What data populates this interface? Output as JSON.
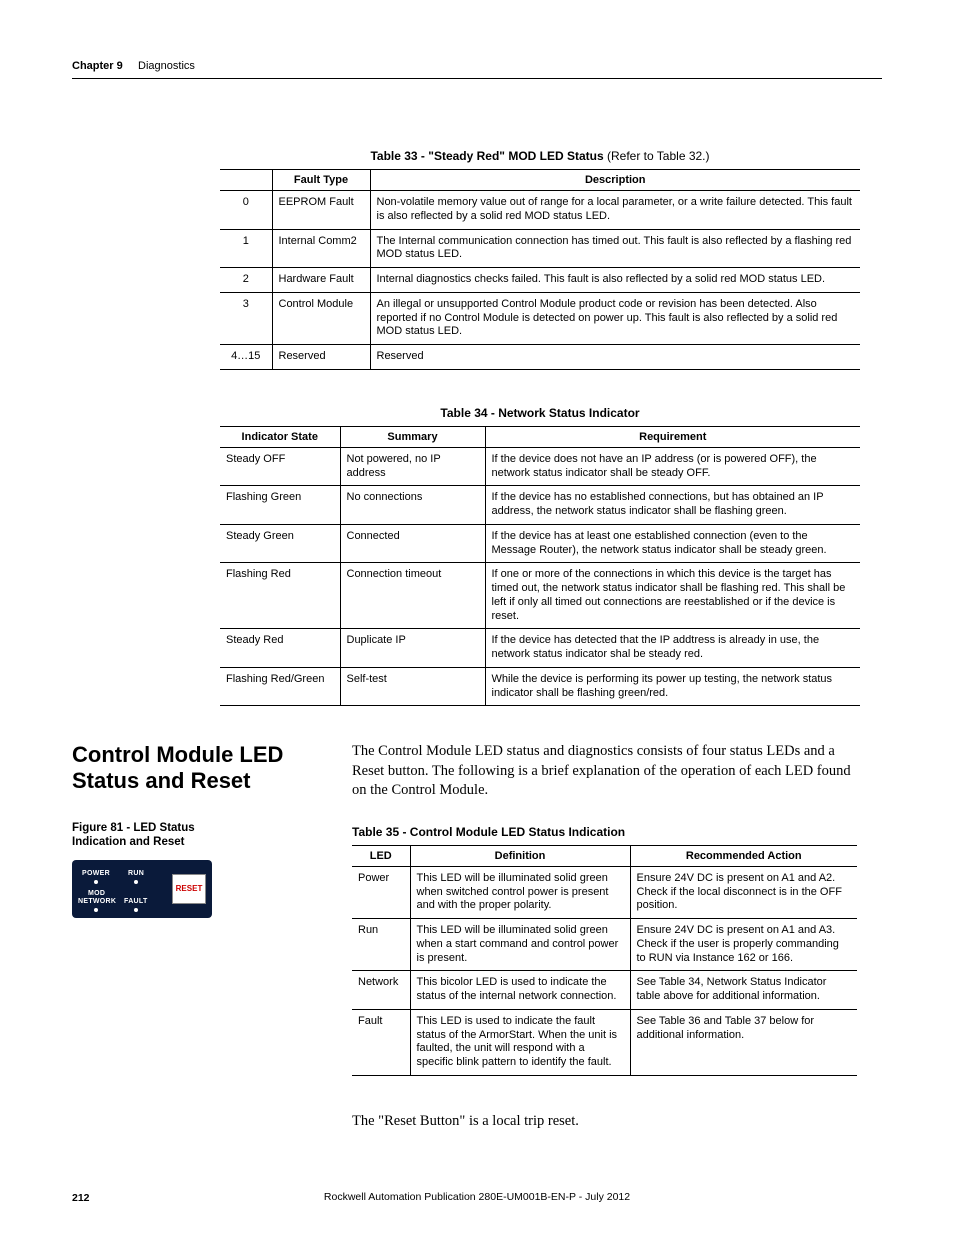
{
  "header": {
    "chapter_label": "Chapter 9",
    "chapter_title": "Diagnostics"
  },
  "table33": {
    "caption_bold": "Table 33 - \"Steady Red\" MOD LED Status",
    "caption_rest": " (Refer to Table 32.)",
    "headers": [
      "",
      "Fault Type",
      "Description"
    ],
    "rows": [
      [
        "0",
        "EEPROM Fault",
        "Non-volatile memory value out of range for a local parameter, or a write failure detected. This fault is also reflected by a solid red MOD status LED."
      ],
      [
        "1",
        "Internal Comm2",
        "The Internal communication connection has timed out. This fault is also reflected by a flashing red MOD status LED."
      ],
      [
        "2",
        "Hardware Fault",
        "Internal diagnostics checks failed. This fault is also reflected by a solid red MOD status LED."
      ],
      [
        "3",
        "Control Module",
        "An illegal or unsupported Control Module product code or revision has been detected. Also reported if no Control Module is detected on power up. This fault is also reflected by a solid red MOD status LED."
      ],
      [
        "4…15",
        "Reserved",
        "Reserved"
      ]
    ]
  },
  "table34": {
    "caption": "Table 34 - Network Status Indicator",
    "headers": [
      "Indicator State",
      "Summary",
      "Requirement"
    ],
    "rows": [
      [
        "Steady OFF",
        "Not powered, no IP address",
        "If the device does not have an IP address (or is powered OFF), the network status indicator shall be steady OFF."
      ],
      [
        "Flashing Green",
        "No connections",
        "If the device has no established connections, but has obtained an IP address, the network status indicator shall be flashing green."
      ],
      [
        "Steady Green",
        "Connected",
        "If the device has at least one established connection (even to the Message Router), the network status indicator shall be steady green."
      ],
      [
        "Flashing Red",
        "Connection timeout",
        "If one or more of the connections in which this device is the target has timed out, the network status indicator shall be flashing red. This shall be left if only all timed out connections are reestablished or if the device is reset."
      ],
      [
        "Steady Red",
        "Duplicate IP",
        "If the device has detected that the IP addtress is already in use, the network status indicator shal be steady red."
      ],
      [
        "Flashing Red/Green",
        "Self-test",
        "While the device is performing its power up testing, the network status indicator shall be flashing green/red."
      ]
    ]
  },
  "section": {
    "heading": "Control Module LED Status and Reset",
    "para1": "The Control Module LED status and diagnostics consists of four status LEDs and a Reset button. The following is a brief explanation of the operation of each LED found on the Control Module.",
    "figure_caption": "Figure 81 - LED Status Indication and Reset",
    "panel": {
      "power": "POWER",
      "run": "RUN",
      "network": "NETWORK",
      "fault": "FAULT",
      "reset": "RESET"
    }
  },
  "table35": {
    "caption": "Table 35 - Control Module LED Status Indication",
    "headers": [
      "LED",
      "Definition",
      "Recommended Action"
    ],
    "rows": [
      [
        "Power",
        "This LED will be illuminated solid green when switched control power is present and with the proper polarity.",
        "Ensure 24V DC is present on A1 and A2. Check if the local disconnect is in the OFF position."
      ],
      [
        "Run",
        "This LED will be illuminated solid green when a start command and control power is present.",
        "Ensure 24V DC is present on A1 and A3. Check if the user is properly commanding to RUN via Instance 162 or 166."
      ],
      [
        "Network",
        "This bicolor LED is used to indicate the status of the internal network connection.",
        "See Table 34, Network Status Indicator table above for additional information."
      ],
      [
        "Fault",
        "This LED is used to indicate the fault status of the ArmorStart. When the unit is faulted, the unit will respond with a specific blink pattern to identify the fault.",
        "See Table 36 and Table 37  below for additional information."
      ]
    ]
  },
  "para2": "The \"Reset Button\" is a local trip reset.",
  "footer": {
    "page": "212",
    "pub": "Rockwell Automation Publication 280E-UM001B-EN-P - July 2012"
  }
}
